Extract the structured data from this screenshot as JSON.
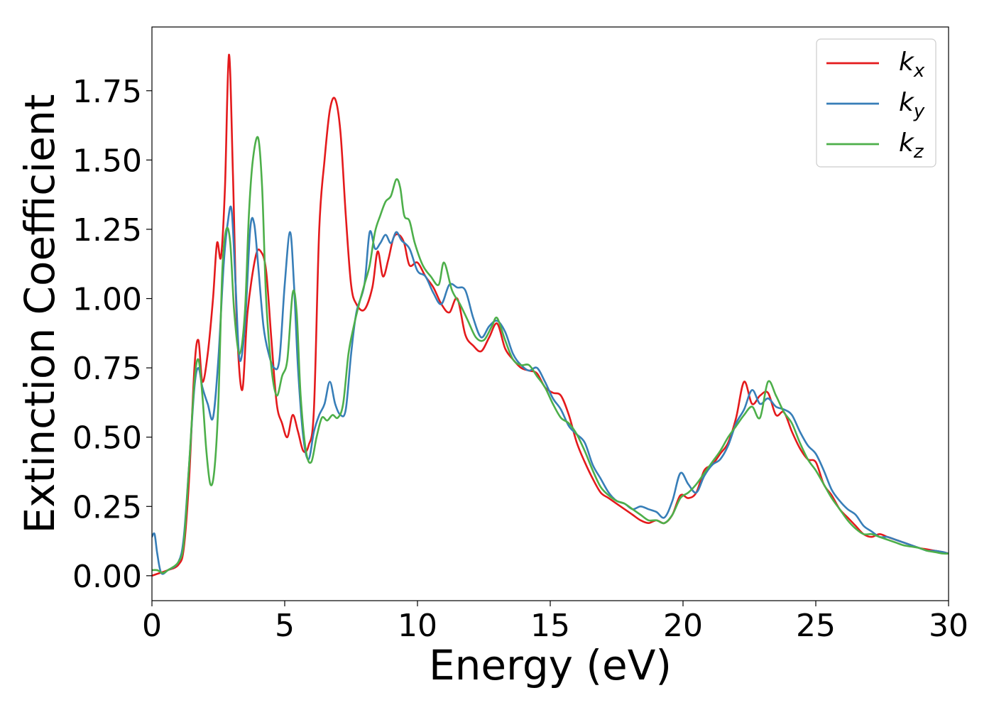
{
  "chart_data": {
    "type": "line",
    "xlabel": "Energy (eV)",
    "ylabel": "Extinction Coefficient",
    "xlim": [
      0,
      30
    ],
    "ylim": [
      -0.09,
      1.98
    ],
    "xticks": [
      0,
      5,
      10,
      15,
      20,
      25,
      30
    ],
    "xtick_labels": [
      "0",
      "5",
      "10",
      "15",
      "20",
      "25",
      "30"
    ],
    "yticks": [
      0,
      0.25,
      0.5,
      0.75,
      1.0,
      1.25,
      1.5,
      1.75
    ],
    "ytick_labels": [
      "0.00",
      "0.25",
      "0.50",
      "0.75",
      "1.00",
      "1.25",
      "1.50",
      "1.75"
    ],
    "grid": false,
    "legend_position": "top-right",
    "series": [
      {
        "name": "k_x",
        "legend_base": "k",
        "legend_sub": "x",
        "color": "#e41a1c",
        "x": [
          0.0,
          0.3,
          0.6,
          1.0,
          1.2,
          1.4,
          1.6,
          1.75,
          1.9,
          2.1,
          2.3,
          2.45,
          2.6,
          2.75,
          2.9,
          3.05,
          3.2,
          3.4,
          3.6,
          3.9,
          4.1,
          4.3,
          4.5,
          4.7,
          4.9,
          5.1,
          5.3,
          5.5,
          5.7,
          5.9,
          6.1,
          6.3,
          6.5,
          6.7,
          6.9,
          7.1,
          7.3,
          7.5,
          7.7,
          8.0,
          8.3,
          8.5,
          8.7,
          8.9,
          9.1,
          9.3,
          9.5,
          9.7,
          10.0,
          10.3,
          10.6,
          10.9,
          11.2,
          11.5,
          11.8,
          12.1,
          12.4,
          12.7,
          13.0,
          13.3,
          13.6,
          13.9,
          14.2,
          14.5,
          14.8,
          15.1,
          15.4,
          15.7,
          16.0,
          16.3,
          16.6,
          16.9,
          17.2,
          17.5,
          17.8,
          18.1,
          18.4,
          18.7,
          19.0,
          19.3,
          19.6,
          19.9,
          20.2,
          20.5,
          20.8,
          21.1,
          21.4,
          21.7,
          22.0,
          22.3,
          22.6,
          22.9,
          23.2,
          23.5,
          23.8,
          24.1,
          24.4,
          24.7,
          25.0,
          25.3,
          25.6,
          25.9,
          26.2,
          26.5,
          26.8,
          27.1,
          27.4,
          27.7,
          28.0,
          28.3,
          28.6,
          28.9,
          29.2,
          29.5,
          29.8,
          30.0
        ],
        "y": [
          0.0,
          0.01,
          0.02,
          0.04,
          0.1,
          0.35,
          0.75,
          0.85,
          0.7,
          0.8,
          1.0,
          1.2,
          1.15,
          1.4,
          1.88,
          1.45,
          0.9,
          0.67,
          0.95,
          1.15,
          1.17,
          1.1,
          0.85,
          0.62,
          0.55,
          0.5,
          0.58,
          0.52,
          0.45,
          0.47,
          0.6,
          1.25,
          1.5,
          1.68,
          1.72,
          1.6,
          1.3,
          1.05,
          0.98,
          0.96,
          1.04,
          1.17,
          1.08,
          1.14,
          1.22,
          1.23,
          1.2,
          1.12,
          1.13,
          1.08,
          1.04,
          0.98,
          0.95,
          1.0,
          0.87,
          0.83,
          0.81,
          0.86,
          0.91,
          0.82,
          0.78,
          0.75,
          0.74,
          0.73,
          0.68,
          0.66,
          0.65,
          0.58,
          0.48,
          0.41,
          0.35,
          0.3,
          0.28,
          0.26,
          0.24,
          0.22,
          0.2,
          0.19,
          0.2,
          0.19,
          0.22,
          0.29,
          0.28,
          0.3,
          0.38,
          0.4,
          0.44,
          0.48,
          0.57,
          0.7,
          0.62,
          0.65,
          0.66,
          0.58,
          0.59,
          0.52,
          0.46,
          0.42,
          0.41,
          0.33,
          0.29,
          0.24,
          0.21,
          0.18,
          0.15,
          0.14,
          0.15,
          0.14,
          0.13,
          0.12,
          0.11,
          0.1,
          0.095,
          0.09,
          0.085,
          0.08
        ]
      },
      {
        "name": "k_y",
        "legend_base": "k",
        "legend_sub": "y",
        "color": "#377eb8",
        "x": [
          0.0,
          0.1,
          0.2,
          0.35,
          0.6,
          1.0,
          1.2,
          1.4,
          1.6,
          1.75,
          1.9,
          2.1,
          2.3,
          2.5,
          2.7,
          2.85,
          3.0,
          3.15,
          3.3,
          3.5,
          3.7,
          3.85,
          4.0,
          4.2,
          4.4,
          4.6,
          4.8,
          5.0,
          5.2,
          5.35,
          5.5,
          5.7,
          5.9,
          6.1,
          6.3,
          6.5,
          6.7,
          6.9,
          7.1,
          7.3,
          7.5,
          7.7,
          8.0,
          8.2,
          8.4,
          8.6,
          8.8,
          9.0,
          9.2,
          9.4,
          9.7,
          10.0,
          10.3,
          10.6,
          10.9,
          11.2,
          11.5,
          11.8,
          12.1,
          12.4,
          12.7,
          13.0,
          13.3,
          13.6,
          13.9,
          14.2,
          14.5,
          14.8,
          15.1,
          15.4,
          15.7,
          16.0,
          16.3,
          16.6,
          16.9,
          17.2,
          17.5,
          17.8,
          18.1,
          18.4,
          18.7,
          19.0,
          19.3,
          19.6,
          19.9,
          20.2,
          20.5,
          20.8,
          21.1,
          21.4,
          21.7,
          22.0,
          22.3,
          22.6,
          22.9,
          23.2,
          23.5,
          23.8,
          24.1,
          24.4,
          24.7,
          25.0,
          25.3,
          25.6,
          25.9,
          26.2,
          26.5,
          26.8,
          27.1,
          27.4,
          27.7,
          28.0,
          28.3,
          28.6,
          28.9,
          29.2,
          29.5,
          29.8,
          30.0
        ],
        "y": [
          0.14,
          0.15,
          0.08,
          0.01,
          0.02,
          0.05,
          0.14,
          0.4,
          0.68,
          0.75,
          0.68,
          0.62,
          0.57,
          0.78,
          1.12,
          1.27,
          1.32,
          1.05,
          0.78,
          0.9,
          1.25,
          1.27,
          1.12,
          0.9,
          0.8,
          0.75,
          0.78,
          1.05,
          1.24,
          1.05,
          0.75,
          0.5,
          0.42,
          0.52,
          0.58,
          0.62,
          0.7,
          0.62,
          0.58,
          0.6,
          0.8,
          0.95,
          1.05,
          1.24,
          1.18,
          1.2,
          1.23,
          1.2,
          1.24,
          1.21,
          1.18,
          1.1,
          1.08,
          1.02,
          0.98,
          1.05,
          1.04,
          1.03,
          0.93,
          0.86,
          0.9,
          0.92,
          0.88,
          0.8,
          0.76,
          0.74,
          0.75,
          0.7,
          0.64,
          0.6,
          0.54,
          0.51,
          0.48,
          0.4,
          0.35,
          0.3,
          0.27,
          0.26,
          0.24,
          0.25,
          0.24,
          0.23,
          0.21,
          0.27,
          0.37,
          0.33,
          0.3,
          0.36,
          0.4,
          0.42,
          0.47,
          0.55,
          0.6,
          0.67,
          0.62,
          0.64,
          0.61,
          0.6,
          0.58,
          0.52,
          0.47,
          0.44,
          0.38,
          0.31,
          0.27,
          0.24,
          0.22,
          0.18,
          0.16,
          0.14,
          0.14,
          0.13,
          0.12,
          0.11,
          0.1,
          0.09,
          0.09,
          0.085,
          0.08
        ]
      },
      {
        "name": "k_z",
        "legend_base": "k",
        "legend_sub": "z",
        "color": "#4daf4a",
        "x": [
          0.0,
          0.2,
          0.4,
          0.6,
          1.0,
          1.2,
          1.4,
          1.6,
          1.75,
          1.9,
          2.05,
          2.2,
          2.35,
          2.5,
          2.65,
          2.8,
          2.95,
          3.1,
          3.3,
          3.5,
          3.65,
          3.8,
          4.0,
          4.15,
          4.3,
          4.5,
          4.7,
          4.9,
          5.1,
          5.3,
          5.45,
          5.6,
          5.8,
          6.0,
          6.2,
          6.4,
          6.6,
          6.8,
          7.0,
          7.2,
          7.4,
          7.6,
          7.8,
          8.0,
          8.2,
          8.4,
          8.6,
          8.8,
          9.0,
          9.2,
          9.35,
          9.5,
          9.7,
          9.9,
          10.2,
          10.5,
          10.8,
          11.0,
          11.3,
          11.6,
          11.9,
          12.2,
          12.5,
          12.8,
          13.0,
          13.3,
          13.6,
          13.9,
          14.2,
          14.5,
          14.8,
          15.1,
          15.4,
          15.7,
          16.0,
          16.3,
          16.6,
          16.9,
          17.2,
          17.5,
          17.8,
          18.1,
          18.4,
          18.7,
          19.0,
          19.3,
          19.6,
          19.9,
          20.2,
          20.5,
          20.8,
          21.1,
          21.4,
          21.7,
          22.0,
          22.3,
          22.6,
          22.9,
          23.2,
          23.5,
          23.8,
          24.1,
          24.4,
          24.7,
          25.0,
          25.3,
          25.6,
          25.9,
          26.2,
          26.5,
          26.8,
          27.1,
          27.4,
          27.7,
          28.0,
          28.3,
          28.6,
          28.9,
          29.2,
          29.5,
          29.8,
          30.0
        ],
        "y": [
          0.02,
          0.02,
          0.01,
          0.02,
          0.05,
          0.12,
          0.4,
          0.7,
          0.78,
          0.65,
          0.45,
          0.33,
          0.38,
          0.62,
          1.1,
          1.25,
          1.2,
          0.95,
          0.8,
          0.95,
          1.3,
          1.5,
          1.58,
          1.4,
          1.0,
          0.75,
          0.65,
          0.72,
          0.78,
          1.02,
          0.95,
          0.65,
          0.45,
          0.41,
          0.5,
          0.57,
          0.56,
          0.58,
          0.57,
          0.62,
          0.8,
          0.9,
          0.98,
          1.05,
          1.12,
          1.24,
          1.3,
          1.35,
          1.37,
          1.43,
          1.4,
          1.3,
          1.28,
          1.2,
          1.12,
          1.08,
          1.05,
          1.13,
          1.03,
          0.98,
          0.92,
          0.86,
          0.85,
          0.9,
          0.93,
          0.85,
          0.78,
          0.76,
          0.76,
          0.72,
          0.68,
          0.62,
          0.57,
          0.55,
          0.51,
          0.45,
          0.38,
          0.32,
          0.29,
          0.27,
          0.26,
          0.24,
          0.22,
          0.2,
          0.2,
          0.19,
          0.22,
          0.28,
          0.3,
          0.33,
          0.37,
          0.41,
          0.45,
          0.5,
          0.54,
          0.58,
          0.61,
          0.57,
          0.7,
          0.65,
          0.59,
          0.55,
          0.48,
          0.42,
          0.38,
          0.33,
          0.28,
          0.24,
          0.2,
          0.17,
          0.15,
          0.15,
          0.14,
          0.13,
          0.12,
          0.11,
          0.105,
          0.1,
          0.09,
          0.085,
          0.08,
          0.08
        ]
      }
    ]
  }
}
